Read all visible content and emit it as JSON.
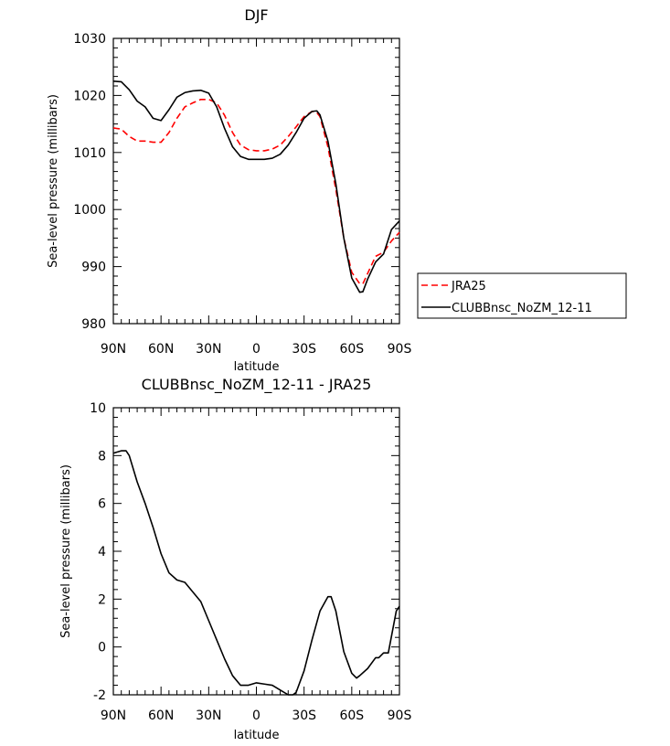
{
  "chart_data": [
    {
      "type": "line",
      "title": "DJF",
      "xlabel": "latitude",
      "ylabel": "Sea-level pressure (millibars)",
      "xlim": [
        -90,
        90
      ],
      "ylim": [
        980,
        1030
      ],
      "x_ticks": [
        -90,
        -60,
        -30,
        0,
        30,
        60,
        90
      ],
      "x_tick_labels": [
        "90N",
        "60N",
        "30N",
        "0",
        "30S",
        "60S",
        "90S"
      ],
      "y_ticks": [
        980,
        990,
        1000,
        1010,
        1020,
        1030
      ],
      "y_tick_labels": [
        "980",
        "990",
        "1000",
        "1010",
        "1020",
        "1030"
      ],
      "legend_position": "right",
      "series": [
        {
          "name": "JRA25",
          "color": "#ff0000",
          "dash": true,
          "x": [
            -90,
            -85,
            -80,
            -75,
            -70,
            -65,
            -60,
            -55,
            -50,
            -45,
            -40,
            -35,
            -30,
            -25,
            -20,
            -15,
            -10,
            -5,
            0,
            5,
            10,
            15,
            20,
            25,
            30,
            35,
            38,
            40,
            45,
            50,
            55,
            60,
            65,
            67,
            70,
            75,
            80,
            85,
            90
          ],
          "y": [
            1014.3,
            1014.1,
            1012.8,
            1012.0,
            1012.0,
            1011.8,
            1011.8,
            1013.5,
            1016.0,
            1018.0,
            1018.7,
            1019.3,
            1019.3,
            1018.7,
            1016.5,
            1013.5,
            1011.3,
            1010.5,
            1010.3,
            1010.3,
            1010.6,
            1011.3,
            1012.8,
            1014.5,
            1016.3,
            1017.2,
            1017.0,
            1016.3,
            1011.0,
            1003.5,
            995.0,
            989.0,
            987.0,
            987.0,
            988.8,
            991.8,
            992.5,
            994.5,
            996.0
          ]
        },
        {
          "name": "CLUBBnsc_NoZM_12-11",
          "color": "#000000",
          "dash": false,
          "x": [
            -90,
            -85,
            -80,
            -75,
            -70,
            -65,
            -60,
            -55,
            -50,
            -45,
            -40,
            -35,
            -30,
            -25,
            -20,
            -15,
            -10,
            -5,
            0,
            5,
            10,
            15,
            20,
            25,
            30,
            35,
            38,
            40,
            45,
            50,
            55,
            60,
            65,
            67,
            70,
            75,
            80,
            85,
            90
          ],
          "y": [
            1022.5,
            1022.4,
            1021.0,
            1019.0,
            1018.0,
            1016.0,
            1015.6,
            1017.5,
            1019.7,
            1020.5,
            1020.8,
            1020.9,
            1020.4,
            1018.0,
            1014.2,
            1011.0,
            1009.3,
            1008.8,
            1008.8,
            1008.8,
            1009.0,
            1009.7,
            1011.3,
            1013.5,
            1016.0,
            1017.2,
            1017.3,
            1016.6,
            1012.0,
            1004.5,
            995.0,
            988.0,
            985.5,
            985.6,
            987.8,
            990.8,
            992.2,
            996.5,
            998.0
          ]
        }
      ]
    },
    {
      "type": "line",
      "title": "CLUBBnsc_NoZM_12-11 - JRA25",
      "xlabel": "latitude",
      "ylabel": "Sea-level pressure (millibars)",
      "xlim": [
        -90,
        90
      ],
      "ylim": [
        -2,
        10
      ],
      "x_ticks": [
        -90,
        -60,
        -30,
        0,
        30,
        60,
        90
      ],
      "x_tick_labels": [
        "90N",
        "60N",
        "30N",
        "0",
        "30S",
        "60S",
        "90S"
      ],
      "y_ticks": [
        -2,
        0,
        2,
        4,
        6,
        8,
        10
      ],
      "y_tick_labels": [
        "-2",
        "0",
        "2",
        "4",
        "6",
        "8",
        "10"
      ],
      "series": [
        {
          "name": "",
          "color": "#000000",
          "dash": false,
          "x": [
            -90,
            -85,
            -82,
            -80,
            -75,
            -70,
            -65,
            -60,
            -55,
            -50,
            -45,
            -40,
            -35,
            -30,
            -25,
            -20,
            -15,
            -10,
            -5,
            0,
            5,
            10,
            15,
            20,
            23,
            25,
            30,
            35,
            40,
            45,
            47,
            50,
            55,
            60,
            63,
            65,
            70,
            75,
            77,
            80,
            83,
            88,
            90
          ],
          "y": [
            8.1,
            8.2,
            8.2,
            8.0,
            6.9,
            6.0,
            5.0,
            3.9,
            3.1,
            2.8,
            2.7,
            2.3,
            1.9,
            1.1,
            0.3,
            -0.5,
            -1.2,
            -1.6,
            -1.6,
            -1.5,
            -1.55,
            -1.6,
            -1.8,
            -2.0,
            -2.0,
            -1.9,
            -1.0,
            0.3,
            1.5,
            2.1,
            2.1,
            1.5,
            -0.2,
            -1.1,
            -1.3,
            -1.2,
            -0.9,
            -0.45,
            -0.45,
            -0.25,
            -0.25,
            1.5,
            1.7
          ]
        }
      ]
    }
  ]
}
